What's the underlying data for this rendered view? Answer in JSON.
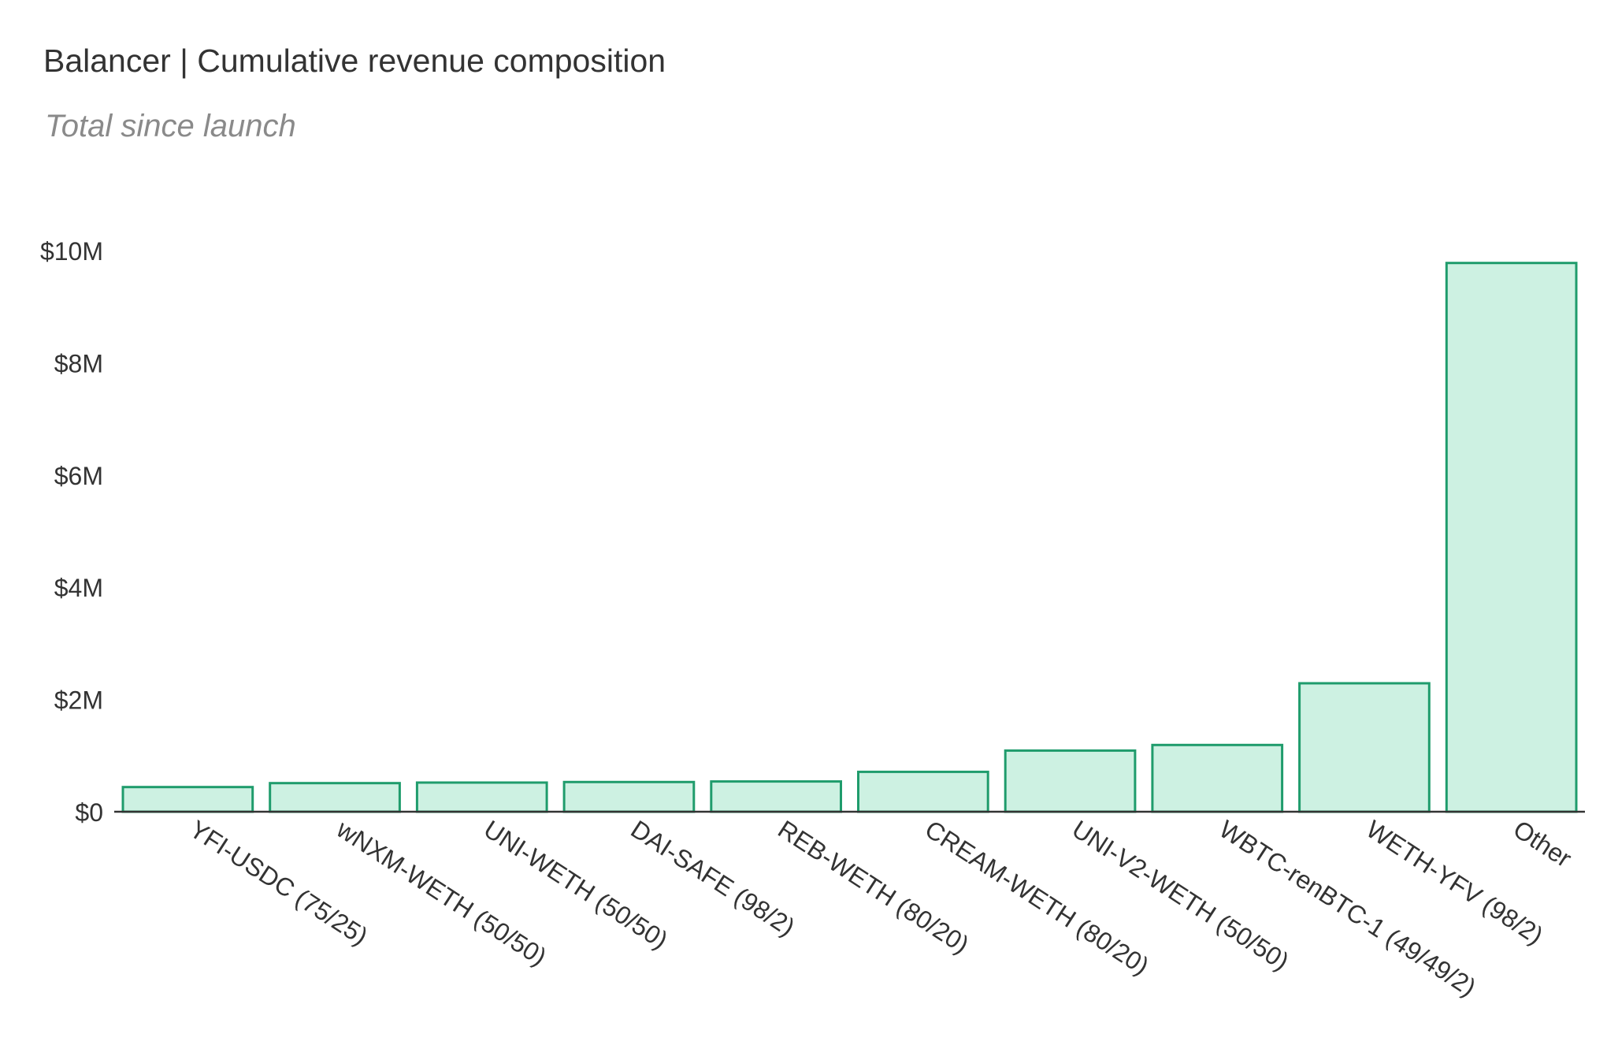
{
  "chart_data": {
    "type": "bar",
    "title": "Balancer | Cumulative revenue composition",
    "subtitle": "Total since launch",
    "categories": [
      "YFI-USDC (75/25)",
      "wNXM-WETH (50/50)",
      "UNI-WETH (50/50)",
      "DAI-SAFE (98/2)",
      "REB-WETH (80/20)",
      "CREAM-WETH (80/20)",
      "UNI-V2-WETH (50/50)",
      "WBTC-renBTC-1 (49/49/2)",
      "WETH-YFV (98/2)",
      "Other"
    ],
    "values": [
      440000,
      510000,
      520000,
      530000,
      540000,
      710000,
      1090000,
      1190000,
      2290000,
      9780000
    ],
    "xlabel": "",
    "ylabel": "",
    "ylim": [
      0,
      10000000
    ],
    "yticks": [
      0,
      2000000,
      4000000,
      6000000,
      8000000,
      10000000
    ],
    "ytick_labels": [
      "$0",
      "$2M",
      "$4M",
      "$6M",
      "$8M",
      "$10M"
    ],
    "grid": false,
    "colors": {
      "bar_fill": "#cdf1e2",
      "bar_stroke": "#1f9c6c",
      "axis": "#333333",
      "tick_text": "#333333"
    }
  }
}
